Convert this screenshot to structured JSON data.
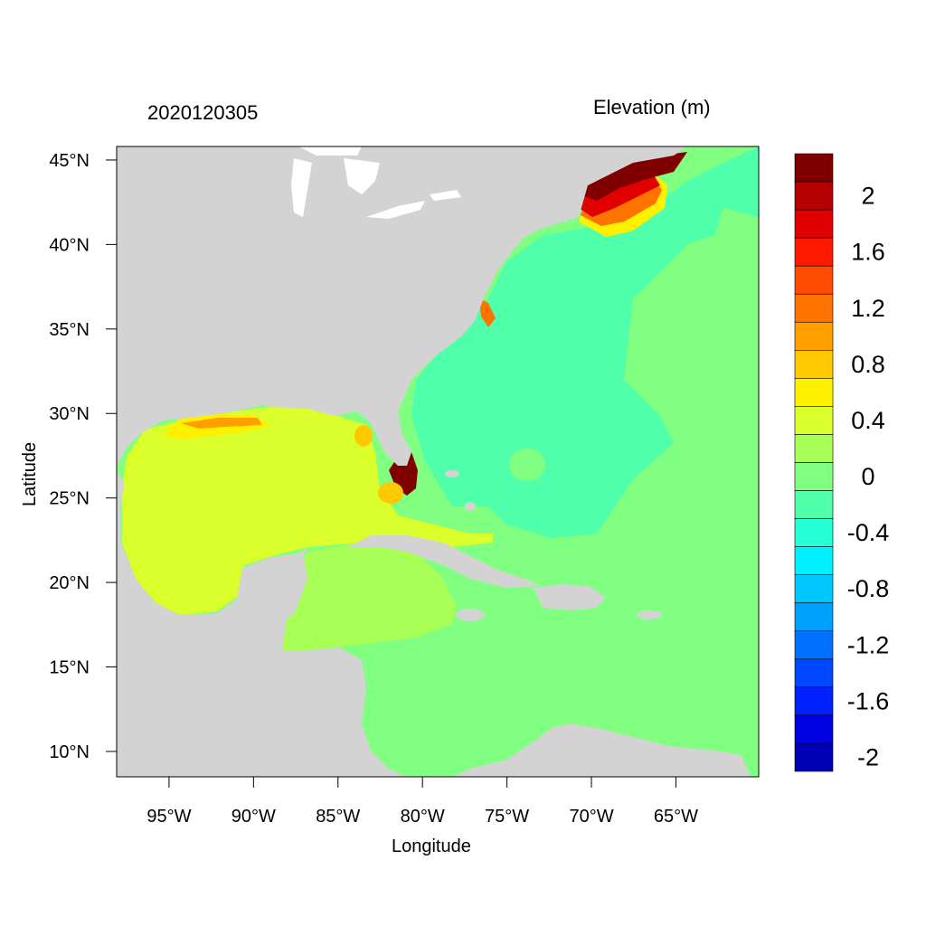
{
  "title_left": "2020120305",
  "title_right": "Elevation (m)",
  "xlabel": "Longitude",
  "ylabel": "Latitude",
  "x_ticks": [
    "95°W",
    "90°W",
    "85°W",
    "80°W",
    "75°W",
    "70°W",
    "65°W"
  ],
  "x_tick_values": [
    -95,
    -90,
    -85,
    -80,
    -75,
    -70,
    -65
  ],
  "y_ticks": [
    "45°N",
    "40°N",
    "35°N",
    "30°N",
    "25°N",
    "20°N",
    "15°N",
    "10°N"
  ],
  "y_tick_values": [
    45,
    40,
    35,
    30,
    25,
    20,
    15,
    10
  ],
  "lon_range": [
    -98.1,
    -60.1
  ],
  "lat_range": [
    8.5,
    45.8
  ],
  "colors": {
    "land": "#d3d3d3",
    "ocean_base": "#80ff80",
    "frame": "#000000"
  },
  "colorbar": {
    "levels_top_to_bottom": [
      {
        "color": "#800000"
      },
      {
        "color": "#b40000"
      },
      {
        "color": "#e00000"
      },
      {
        "color": "#ff1a00"
      },
      {
        "color": "#ff4c00"
      },
      {
        "color": "#ff7300"
      },
      {
        "color": "#ff9f00"
      },
      {
        "color": "#ffc800"
      },
      {
        "color": "#fff000"
      },
      {
        "color": "#daff2a"
      },
      {
        "color": "#a8ff56"
      },
      {
        "color": "#80ff80"
      },
      {
        "color": "#50ffaa"
      },
      {
        "color": "#24ffd6"
      },
      {
        "color": "#00f0ff"
      },
      {
        "color": "#00c8ff"
      },
      {
        "color": "#00a0ff"
      },
      {
        "color": "#0070ff"
      },
      {
        "color": "#0048ff"
      },
      {
        "color": "#0020ff"
      },
      {
        "color": "#0000e0"
      },
      {
        "color": "#0000b4"
      }
    ],
    "labels": [
      "2",
      "1.6",
      "1.2",
      "0.8",
      "0.4",
      "0",
      "-0.4",
      "-0.8",
      "-1.2",
      "-1.6",
      "-2"
    ]
  }
}
